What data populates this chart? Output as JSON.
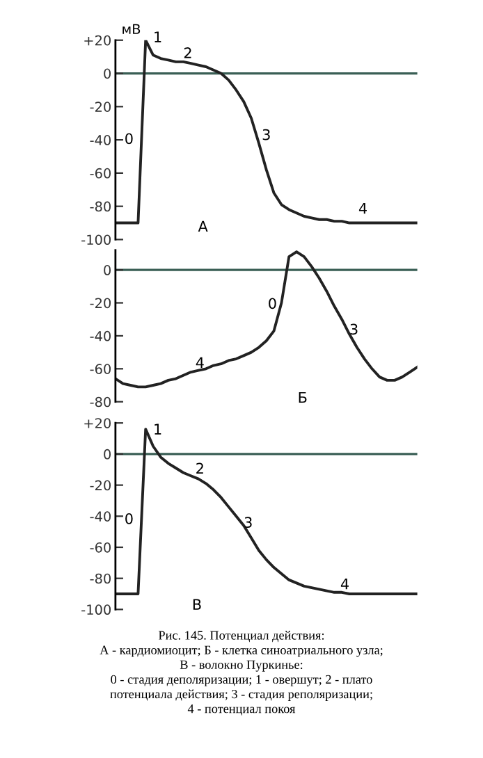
{
  "chart_data": [
    {
      "type": "line",
      "ylabel": "мВ",
      "categories": [
        null,
        null,
        null,
        null,
        null,
        null,
        null,
        null,
        null,
        null,
        null,
        null,
        null,
        null,
        null,
        null,
        null,
        null,
        null,
        null,
        null,
        null,
        null,
        null,
        null,
        null,
        null,
        null,
        null,
        null,
        null,
        null,
        null,
        null,
        null,
        null,
        null,
        null,
        null,
        null,
        null
      ],
      "series": [
        {
          "color": "#222222",
          "values": [
            -90,
            -90,
            -90,
            -90,
            20,
            11,
            9,
            8,
            7,
            7,
            6,
            5,
            4,
            2,
            0,
            -4,
            -10,
            -17,
            -27,
            -42,
            -58,
            -72,
            -79,
            -82,
            -84,
            -86,
            -87,
            -88,
            -88,
            -89,
            -89,
            -90,
            -90,
            -90,
            -90,
            -90,
            -90,
            -90,
            -90,
            -90,
            -90
          ]
        }
      ],
      "ylim": [
        -100,
        20
      ],
      "yticks": [
        {
          "value": 20,
          "label": "+20"
        },
        0,
        -20,
        -40,
        -60,
        -80,
        -100
      ],
      "tick_labels": "y",
      "grid": false,
      "ref_lines": [
        {
          "axis": "y",
          "value": 0,
          "color": "#3a5f55"
        }
      ],
      "annotations": [
        "1",
        "2",
        "0",
        "3",
        "4",
        "А"
      ]
    },
    {
      "type": "line",
      "categories": [
        null,
        null,
        null,
        null,
        null,
        null,
        null,
        null,
        null,
        null,
        null,
        null,
        null,
        null,
        null,
        null,
        null,
        null,
        null,
        null,
        null,
        null,
        null,
        null,
        null,
        null,
        null,
        null,
        null,
        null,
        null,
        null,
        null,
        null,
        null,
        null,
        null,
        null,
        null,
        null,
        null
      ],
      "series": [
        {
          "color": "#222222",
          "values": [
            -66,
            -69,
            -70,
            -71,
            -71,
            -70,
            -69,
            -67,
            -66,
            -64,
            -62,
            -61,
            -60,
            -58,
            -57,
            -55,
            -54,
            -52,
            -50,
            -47,
            -43,
            -37,
            -20,
            8,
            11,
            8,
            2,
            -5,
            -13,
            -22,
            -30,
            -39,
            -47,
            -54,
            -60,
            -65,
            -67,
            -67,
            -65,
            -62,
            -59
          ]
        }
      ],
      "ylim": [
        -80,
        12
      ],
      "yticks": [
        0,
        -20,
        -40,
        -60,
        -80
      ],
      "tick_labels": "y",
      "grid": false,
      "ref_lines": [
        {
          "axis": "y",
          "value": 0,
          "color": "#3a5f55"
        }
      ],
      "annotations": [
        "0",
        "3",
        "4",
        "Б"
      ]
    },
    {
      "type": "line",
      "categories": [
        null,
        null,
        null,
        null,
        null,
        null,
        null,
        null,
        null,
        null,
        null,
        null,
        null,
        null,
        null,
        null,
        null,
        null,
        null,
        null,
        null,
        null,
        null,
        null,
        null,
        null,
        null,
        null,
        null,
        null,
        null,
        null,
        null,
        null,
        null,
        null,
        null,
        null,
        null,
        null,
        null
      ],
      "series": [
        {
          "color": "#222222",
          "values": [
            -90,
            -90,
            -90,
            -90,
            16,
            5,
            -2,
            -6,
            -9,
            -12,
            -14,
            -16,
            -19,
            -23,
            -28,
            -34,
            -40,
            -46,
            -54,
            -62,
            -68,
            -73,
            -77,
            -81,
            -83,
            -85,
            -86,
            -87,
            -88,
            -89,
            -89,
            -90,
            -90,
            -90,
            -90,
            -90,
            -90,
            -90,
            -90,
            -90,
            -90
          ]
        }
      ],
      "ylim": [
        -100,
        20
      ],
      "yticks": [
        {
          "value": 20,
          "label": "+20"
        },
        0,
        -20,
        -40,
        -60,
        -80,
        -100
      ],
      "tick_labels": "y",
      "grid": false,
      "ref_lines": [
        {
          "axis": "y",
          "value": 0,
          "color": "#3a5f55"
        }
      ],
      "annotations": [
        "1",
        "2",
        "0",
        "3",
        "4",
        "В",
        "Рис. 145. Потенциал действия:\nА - кардиомиоцит; Б - клетка синоатриального узла;\nВ - волокно Пуркинье:\n0 - стадия деполяризации; 1 - овершут; 2 - плато\nпотенциала действия; 3 - стадия реполяризации;\n4 - потенциал покоя"
      ]
    }
  ]
}
